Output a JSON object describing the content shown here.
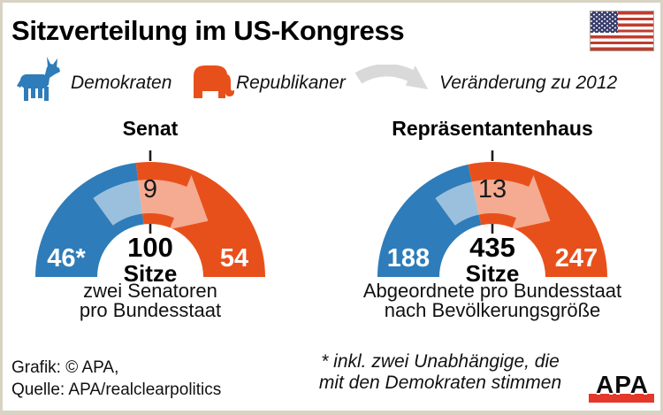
{
  "page": {
    "title": "Sitzverteilung im US-Kongress"
  },
  "colors": {
    "democrat_blue": "#2e7cb9",
    "republican_orange": "#e8501b",
    "change_arrow_gray": "#d9d9d9",
    "apa_red": "#e6372b",
    "frame_beige": "#d9d3c3"
  },
  "icons": {
    "flag": "us-flag-icon",
    "democrats": "donkey-icon",
    "republicans": "elephant-icon",
    "change": "curved-arrow-right-icon"
  },
  "legend": {
    "democrats_label": "Demokraten",
    "republicans_label": "Republikaner",
    "change_label": "Veränderung zu 2012"
  },
  "chart_data": [
    {
      "type": "gauge",
      "title": "Senat",
      "total_seats": 100,
      "total_label": "100",
      "total_unit": "Sitze",
      "segments": [
        {
          "party": "Demokraten",
          "seats": 46,
          "display": "46*",
          "color": "#2e7cb9"
        },
        {
          "party": "Republikaner",
          "seats": 54,
          "display": "54",
          "color": "#e8501b"
        }
      ],
      "change_to_2012": 9,
      "change_gained_by": "Republikaner",
      "caption_lines": [
        "zwei Senatoren",
        "pro Bundesstaat"
      ]
    },
    {
      "type": "gauge",
      "title": "Repräsentantenhaus",
      "total_seats": 435,
      "total_label": "435",
      "total_unit": "Sitze",
      "segments": [
        {
          "party": "Demokraten",
          "seats": 188,
          "display": "188",
          "color": "#2e7cb9"
        },
        {
          "party": "Republikaner",
          "seats": 247,
          "display": "247",
          "color": "#e8501b"
        }
      ],
      "change_to_2012": 13,
      "change_gained_by": "Republikaner",
      "caption_lines": [
        "Abgeordnete pro Bundesstaat",
        "nach Bevölkerungsgröße"
      ]
    }
  ],
  "footnote_lines": [
    "* inkl. zwei Unabhängige, die",
    "mit den Demokraten stimmen"
  ],
  "footer": {
    "credit_line": "Grafik: © APA,",
    "source_line": "Quelle: APA/realclearpolitics",
    "logo_text": "APA"
  }
}
